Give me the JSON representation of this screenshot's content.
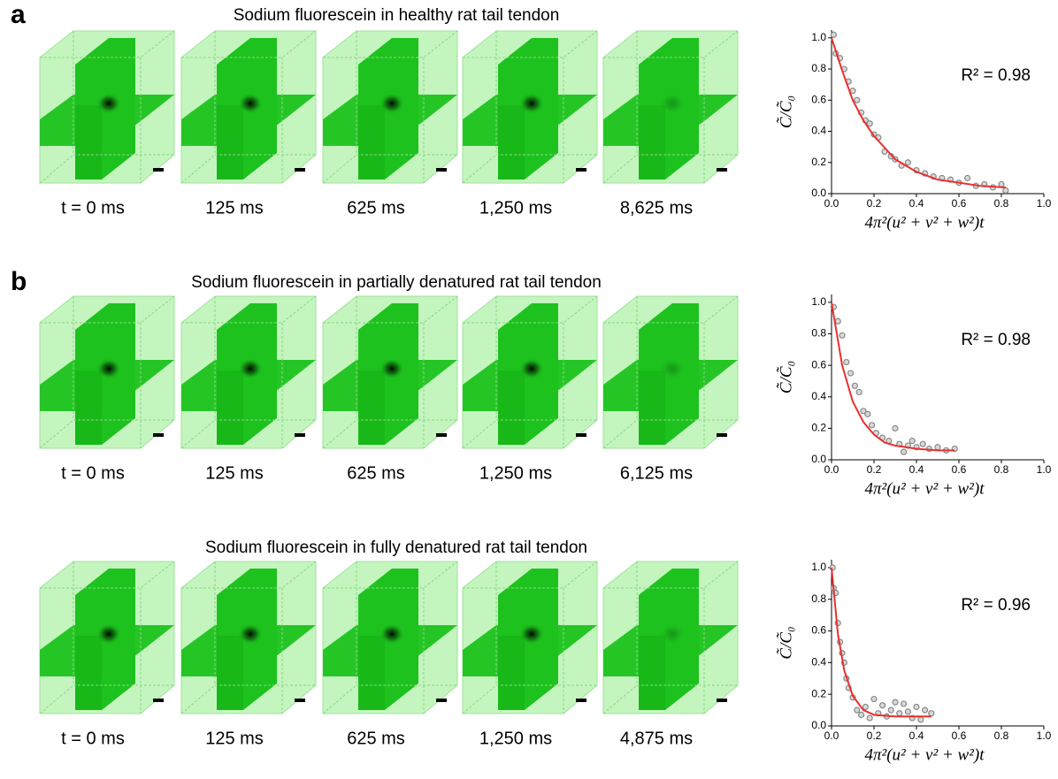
{
  "rows": [
    {
      "label": "a",
      "title": "Sodium fluorescein in healthy rat tail tendon",
      "times": [
        "t = 0 ms",
        "125 ms",
        "625 ms",
        "1,250 ms",
        "8,625 ms"
      ]
    },
    {
      "label": "b",
      "title": "Sodium fluorescein in partially denatured rat tail tendon",
      "times": [
        "t = 0 ms",
        "125 ms",
        "625 ms",
        "1,250 ms",
        "6,125 ms"
      ]
    },
    {
      "title": "Sodium fluorescein in fully denatured rat tail tendon",
      "times": [
        "t = 0 ms",
        "125 ms",
        "625 ms",
        "1,250 ms",
        "4,875 ms"
      ]
    }
  ],
  "chart_data": [
    {
      "type": "scatter",
      "x_label": "4π²(u² + v² + w²)t",
      "y_label": "C̃/C̃₀",
      "annotation": "R² = 0.98",
      "xlim": [
        0,
        1
      ],
      "ylim": [
        0,
        1.05
      ],
      "xticks": [
        {
          "value": 0,
          "label": "0.0"
        },
        0.2,
        0.4,
        0.6,
        0.8,
        {
          "value": 1,
          "label": "1.0"
        }
      ],
      "yticks": [
        {
          "value": 0,
          "label": "0.0"
        },
        0.2,
        0.4,
        0.6,
        0.8,
        {
          "value": 1,
          "label": "1.0"
        }
      ],
      "series": [
        {
          "type": "scatter",
          "color": "#888888",
          "x": [
            0.01,
            0.02,
            0.04,
            0.06,
            0.08,
            0.1,
            0.12,
            0.14,
            0.16,
            0.18,
            0.2,
            0.22,
            0.25,
            0.28,
            0.3,
            0.33,
            0.36,
            0.4,
            0.44,
            0.48,
            0.52,
            0.56,
            0.6,
            0.64,
            0.68,
            0.72,
            0.76,
            0.8,
            0.82
          ],
          "values": [
            1.02,
            0.9,
            0.87,
            0.8,
            0.72,
            0.66,
            0.6,
            0.52,
            0.47,
            0.45,
            0.38,
            0.36,
            0.27,
            0.24,
            0.22,
            0.18,
            0.2,
            0.15,
            0.13,
            0.11,
            0.1,
            0.09,
            0.07,
            0.1,
            0.05,
            0.06,
            0.04,
            0.06,
            0.02
          ]
        },
        {
          "type": "line",
          "color": "#e8312f",
          "x": [
            0,
            0.05,
            0.1,
            0.15,
            0.2,
            0.3,
            0.4,
            0.5,
            0.6,
            0.7,
            0.82
          ],
          "values": [
            1.0,
            0.79,
            0.6,
            0.47,
            0.37,
            0.22,
            0.14,
            0.09,
            0.07,
            0.05,
            0.04
          ]
        }
      ]
    },
    {
      "type": "scatter",
      "x_label": "4π²(u² + v² + w²)t",
      "y_label": "C̃/C̃₀",
      "annotation": "R² = 0.98",
      "xlim": [
        0,
        1
      ],
      "ylim": [
        0,
        1.05
      ],
      "xticks": [
        {
          "value": 0,
          "label": "0.0"
        },
        0.2,
        0.4,
        0.6,
        0.8,
        {
          "value": 1,
          "label": "1.0"
        }
      ],
      "yticks": [
        {
          "value": 0,
          "label": "0.0"
        },
        0.2,
        0.4,
        0.6,
        0.8,
        {
          "value": 1,
          "label": "1.0"
        }
      ],
      "series": [
        {
          "type": "scatter",
          "color": "#888888",
          "x": [
            0.01,
            0.03,
            0.05,
            0.07,
            0.09,
            0.11,
            0.13,
            0.15,
            0.17,
            0.19,
            0.21,
            0.24,
            0.27,
            0.3,
            0.32,
            0.34,
            0.36,
            0.38,
            0.4,
            0.43,
            0.46,
            0.5,
            0.54,
            0.58
          ],
          "values": [
            0.97,
            0.88,
            0.79,
            0.62,
            0.55,
            0.47,
            0.43,
            0.31,
            0.29,
            0.22,
            0.17,
            0.14,
            0.12,
            0.2,
            0.1,
            0.05,
            0.09,
            0.12,
            0.08,
            0.1,
            0.07,
            0.08,
            0.06,
            0.07
          ]
        },
        {
          "type": "line",
          "color": "#e8312f",
          "x": [
            0,
            0.05,
            0.1,
            0.15,
            0.2,
            0.25,
            0.3,
            0.4,
            0.5,
            0.58
          ],
          "values": [
            1.0,
            0.6,
            0.37,
            0.24,
            0.16,
            0.11,
            0.09,
            0.07,
            0.06,
            0.06
          ]
        }
      ]
    },
    {
      "type": "scatter",
      "x_label": "4π²(u² + v² + w²)t",
      "y_label": "C̃/C̃₀",
      "annotation": "R² = 0.96",
      "xlim": [
        0,
        1
      ],
      "ylim": [
        0,
        1.05
      ],
      "xticks": [
        {
          "value": 0,
          "label": "0.0"
        },
        0.2,
        0.4,
        0.6,
        0.8,
        {
          "value": 1,
          "label": "1.0"
        }
      ],
      "yticks": [
        {
          "value": 0,
          "label": "0.0"
        },
        0.2,
        0.4,
        0.6,
        0.8,
        {
          "value": 1,
          "label": "1.0"
        }
      ],
      "series": [
        {
          "type": "scatter",
          "color": "#888888",
          "x": [
            0.005,
            0.01,
            0.02,
            0.03,
            0.04,
            0.05,
            0.06,
            0.07,
            0.08,
            0.1,
            0.12,
            0.14,
            0.16,
            0.18,
            0.2,
            0.22,
            0.24,
            0.26,
            0.28,
            0.3,
            0.32,
            0.34,
            0.36,
            0.38,
            0.4,
            0.42,
            0.44,
            0.47
          ],
          "values": [
            1.0,
            0.87,
            0.84,
            0.65,
            0.53,
            0.46,
            0.4,
            0.3,
            0.24,
            0.18,
            0.1,
            0.07,
            0.12,
            0.05,
            0.17,
            0.08,
            0.13,
            0.06,
            0.1,
            0.15,
            0.08,
            0.14,
            0.09,
            0.05,
            0.12,
            0.04,
            0.1,
            0.08
          ]
        },
        {
          "type": "line",
          "color": "#e8312f",
          "x": [
            0,
            0.03,
            0.06,
            0.1,
            0.15,
            0.2,
            0.3,
            0.47
          ],
          "values": [
            1.0,
            0.58,
            0.35,
            0.19,
            0.1,
            0.07,
            0.06,
            0.06
          ]
        }
      ]
    }
  ]
}
